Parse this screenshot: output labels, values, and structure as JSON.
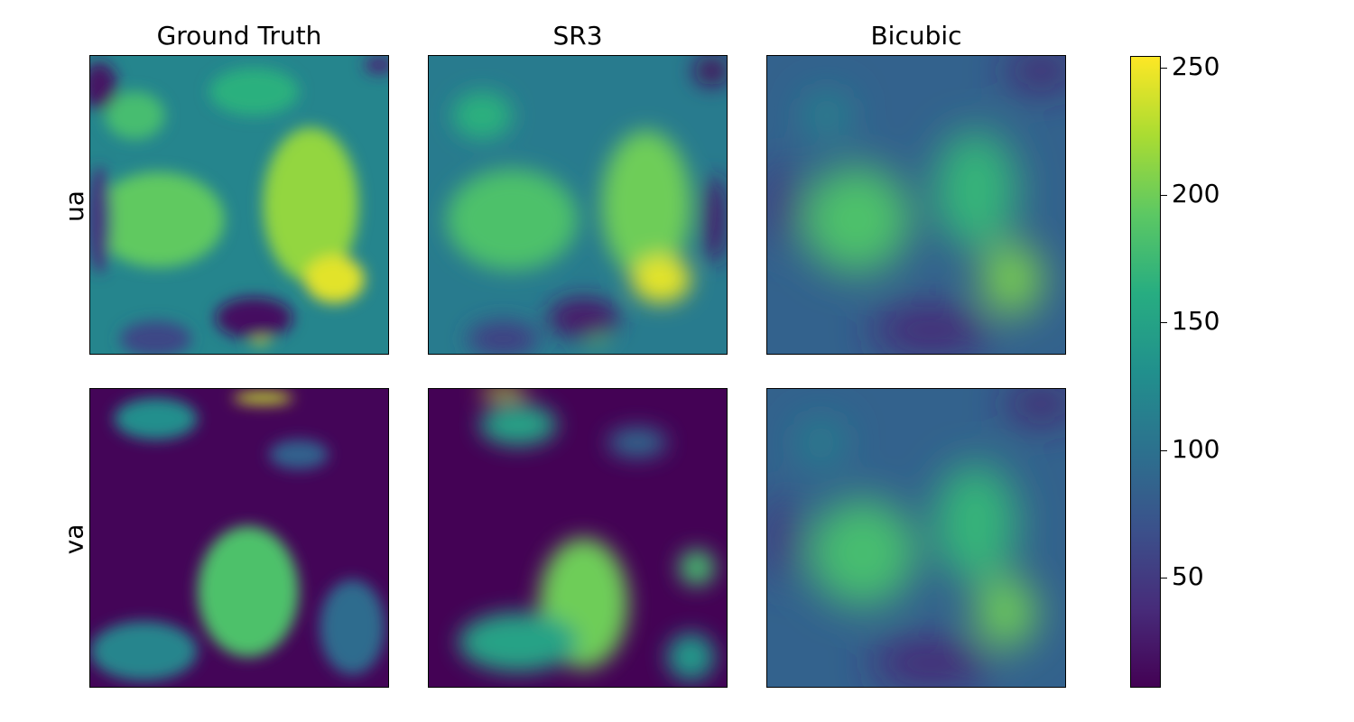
{
  "chart_data": {
    "type": "heatmap",
    "colormap": "viridis",
    "columns": [
      "Ground Truth",
      "SR3",
      "Bicubic"
    ],
    "rows": [
      "ua",
      "va"
    ],
    "colorbar": {
      "range": [
        7,
        255
      ],
      "ticks": [
        50,
        100,
        150,
        200,
        250
      ],
      "tick_labels": [
        "50",
        "100",
        "150",
        "200",
        "250"
      ]
    },
    "panels": [
      {
        "row": "ua",
        "column": "Ground Truth",
        "background": 120,
        "blobs": [
          {
            "cx": 0.23,
            "cy": 0.55,
            "rx": 0.22,
            "ry": 0.16,
            "v": 195
          },
          {
            "cx": 0.74,
            "cy": 0.5,
            "rx": 0.16,
            "ry": 0.26,
            "v": 215
          },
          {
            "cx": 0.82,
            "cy": 0.75,
            "rx": 0.1,
            "ry": 0.08,
            "v": 245
          },
          {
            "cx": 0.55,
            "cy": 0.12,
            "rx": 0.15,
            "ry": 0.08,
            "v": 165
          },
          {
            "cx": 0.15,
            "cy": 0.2,
            "rx": 0.1,
            "ry": 0.08,
            "v": 180
          },
          {
            "cx": 0.57,
            "cy": 0.9,
            "rx": 0.05,
            "ry": 0.07,
            "v": 235
          },
          {
            "cx": 0.03,
            "cy": 0.1,
            "rx": 0.06,
            "ry": 0.08,
            "v": 20
          },
          {
            "cx": 0.97,
            "cy": 0.03,
            "rx": 0.05,
            "ry": 0.03,
            "v": 35
          },
          {
            "cx": 0.55,
            "cy": 0.88,
            "rx": 0.13,
            "ry": 0.07,
            "v": 18
          },
          {
            "cx": 0.03,
            "cy": 0.55,
            "rx": 0.04,
            "ry": 0.18,
            "v": 45
          },
          {
            "cx": 0.22,
            "cy": 0.95,
            "rx": 0.12,
            "ry": 0.06,
            "v": 60
          }
        ]
      },
      {
        "row": "ua",
        "column": "SR3",
        "background": 110,
        "blobs": [
          {
            "cx": 0.28,
            "cy": 0.55,
            "rx": 0.22,
            "ry": 0.17,
            "v": 185
          },
          {
            "cx": 0.73,
            "cy": 0.5,
            "rx": 0.15,
            "ry": 0.25,
            "v": 200
          },
          {
            "cx": 0.78,
            "cy": 0.75,
            "rx": 0.1,
            "ry": 0.08,
            "v": 245
          },
          {
            "cx": 0.18,
            "cy": 0.2,
            "rx": 0.1,
            "ry": 0.08,
            "v": 165
          },
          {
            "cx": 0.56,
            "cy": 0.9,
            "rx": 0.05,
            "ry": 0.07,
            "v": 200
          },
          {
            "cx": 0.95,
            "cy": 0.05,
            "rx": 0.06,
            "ry": 0.05,
            "v": 12
          },
          {
            "cx": 0.96,
            "cy": 0.55,
            "rx": 0.04,
            "ry": 0.15,
            "v": 25
          },
          {
            "cx": 0.52,
            "cy": 0.88,
            "rx": 0.12,
            "ry": 0.07,
            "v": 25
          },
          {
            "cx": 0.25,
            "cy": 0.95,
            "rx": 0.12,
            "ry": 0.06,
            "v": 55
          }
        ]
      },
      {
        "row": "ua",
        "column": "Bicubic",
        "background": 85,
        "blobs": [
          {
            "cx": 0.3,
            "cy": 0.55,
            "rx": 0.18,
            "ry": 0.18,
            "v": 185
          },
          {
            "cx": 0.7,
            "cy": 0.45,
            "rx": 0.14,
            "ry": 0.2,
            "v": 170
          },
          {
            "cx": 0.82,
            "cy": 0.75,
            "rx": 0.1,
            "ry": 0.12,
            "v": 205
          },
          {
            "cx": 0.2,
            "cy": 0.2,
            "rx": 0.07,
            "ry": 0.07,
            "v": 130
          },
          {
            "cx": 0.55,
            "cy": 0.92,
            "rx": 0.2,
            "ry": 0.08,
            "v": 35
          },
          {
            "cx": 0.92,
            "cy": 0.05,
            "rx": 0.12,
            "ry": 0.06,
            "v": 30
          },
          {
            "cx": 0.05,
            "cy": 0.5,
            "rx": 0.06,
            "ry": 0.14,
            "v": 45
          }
        ]
      },
      {
        "row": "va",
        "column": "Ground Truth",
        "background": 10,
        "blobs": [
          {
            "cx": 0.53,
            "cy": 0.68,
            "rx": 0.17,
            "ry": 0.22,
            "v": 185
          },
          {
            "cx": 0.18,
            "cy": 0.88,
            "rx": 0.18,
            "ry": 0.1,
            "v": 120
          },
          {
            "cx": 0.88,
            "cy": 0.8,
            "rx": 0.11,
            "ry": 0.16,
            "v": 95
          },
          {
            "cx": 0.22,
            "cy": 0.1,
            "rx": 0.14,
            "ry": 0.07,
            "v": 130
          },
          {
            "cx": 0.58,
            "cy": 0.03,
            "rx": 0.1,
            "ry": 0.02,
            "v": 235
          },
          {
            "cx": 0.7,
            "cy": 0.22,
            "rx": 0.1,
            "ry": 0.05,
            "v": 85
          }
        ]
      },
      {
        "row": "va",
        "column": "SR3",
        "background": 8,
        "blobs": [
          {
            "cx": 0.52,
            "cy": 0.72,
            "rx": 0.15,
            "ry": 0.22,
            "v": 200
          },
          {
            "cx": 0.3,
            "cy": 0.85,
            "rx": 0.2,
            "ry": 0.1,
            "v": 150
          },
          {
            "cx": 0.9,
            "cy": 0.6,
            "rx": 0.06,
            "ry": 0.06,
            "v": 180
          },
          {
            "cx": 0.88,
            "cy": 0.9,
            "rx": 0.08,
            "ry": 0.08,
            "v": 140
          },
          {
            "cx": 0.3,
            "cy": 0.12,
            "rx": 0.13,
            "ry": 0.07,
            "v": 150
          },
          {
            "cx": 0.25,
            "cy": 0.01,
            "rx": 0.08,
            "ry": 0.02,
            "v": 230
          },
          {
            "cx": 0.7,
            "cy": 0.18,
            "rx": 0.1,
            "ry": 0.05,
            "v": 90
          }
        ]
      },
      {
        "row": "va",
        "column": "Bicubic",
        "background": 85,
        "blobs": [
          {
            "cx": 0.32,
            "cy": 0.55,
            "rx": 0.18,
            "ry": 0.18,
            "v": 180
          },
          {
            "cx": 0.7,
            "cy": 0.45,
            "rx": 0.14,
            "ry": 0.2,
            "v": 170
          },
          {
            "cx": 0.8,
            "cy": 0.75,
            "rx": 0.1,
            "ry": 0.12,
            "v": 200
          },
          {
            "cx": 0.18,
            "cy": 0.18,
            "rx": 0.07,
            "ry": 0.07,
            "v": 125
          },
          {
            "cx": 0.55,
            "cy": 0.92,
            "rx": 0.2,
            "ry": 0.08,
            "v": 35
          },
          {
            "cx": 0.92,
            "cy": 0.05,
            "rx": 0.12,
            "ry": 0.06,
            "v": 30
          },
          {
            "cx": 0.05,
            "cy": 0.5,
            "rx": 0.06,
            "ry": 0.14,
            "v": 45
          }
        ]
      }
    ]
  }
}
